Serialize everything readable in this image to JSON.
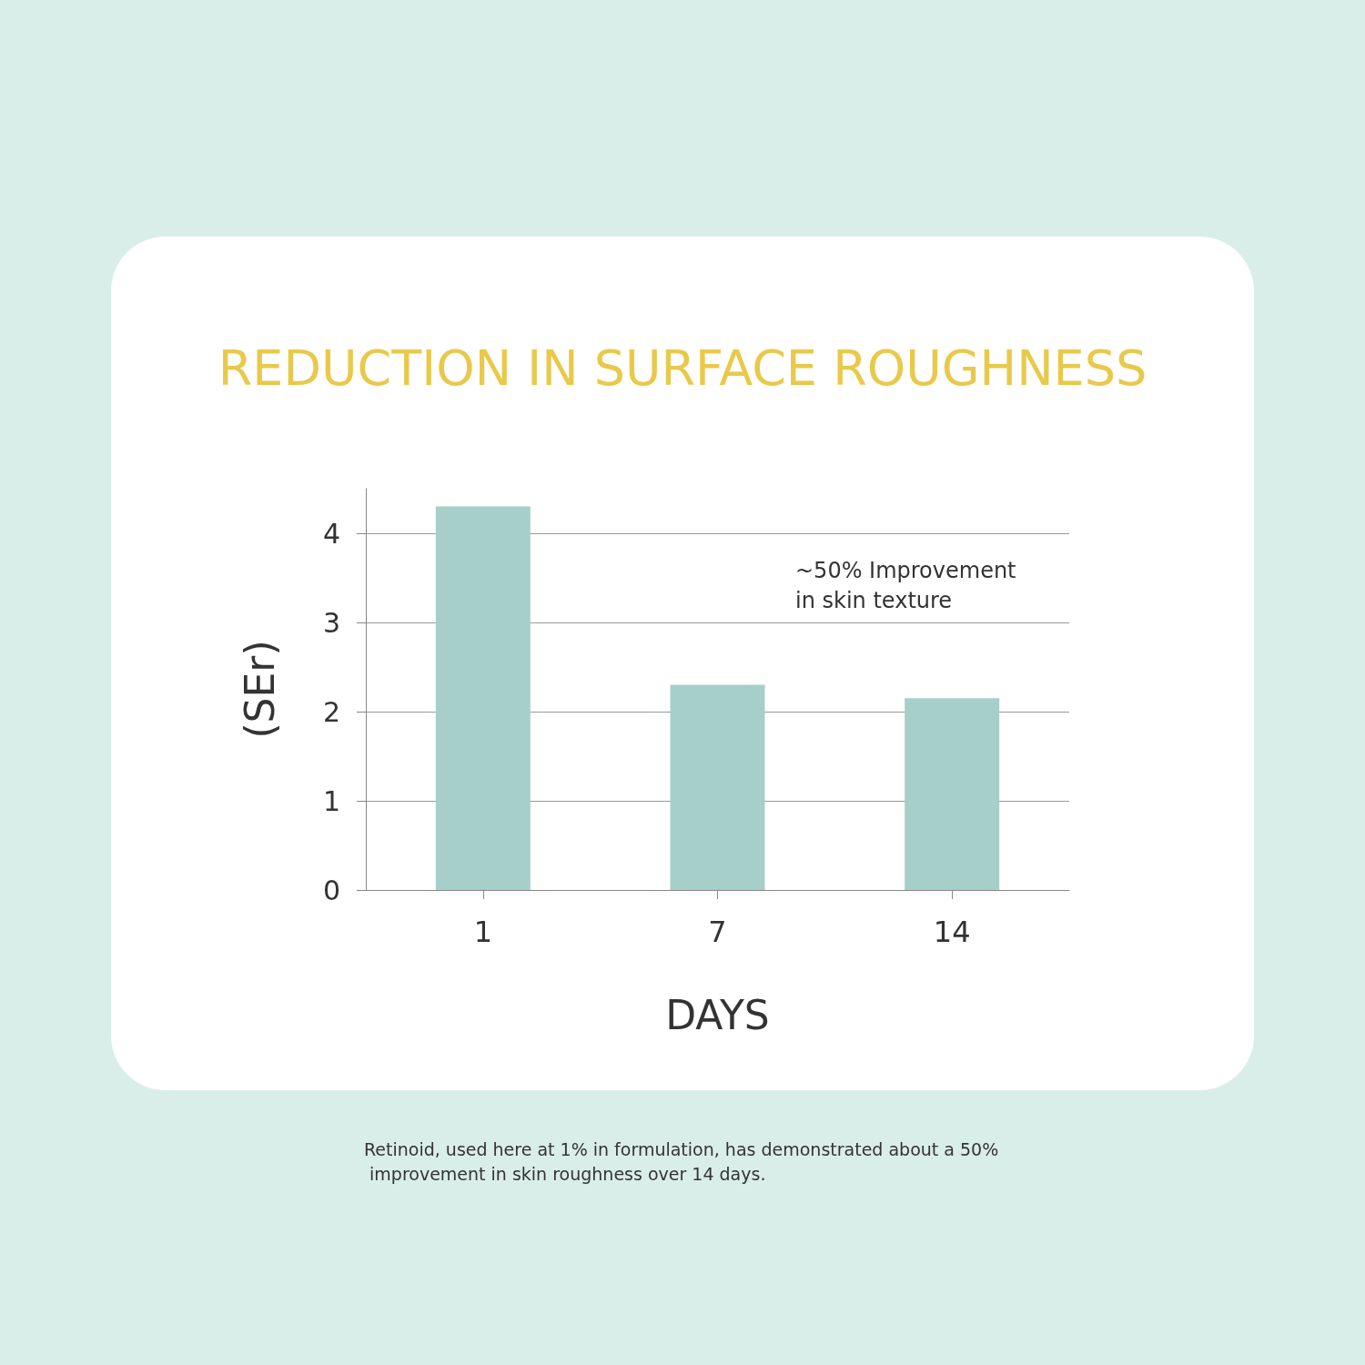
{
  "chart_data": {
    "type": "bar",
    "title": "REDUCTION IN SURFACE ROUGHNESS",
    "xlabel": "DAYS",
    "ylabel": "(SEr)",
    "categories": [
      "1",
      "7",
      "14"
    ],
    "values": [
      4.3,
      2.3,
      2.15
    ],
    "color": "#a6cfca",
    "ylim": [
      0,
      4.5
    ],
    "yticks": [
      0,
      1,
      2,
      3,
      4
    ],
    "grid": "y",
    "annotations": [
      "~50% Improvement in skin texture",
      "Retinoid, used here at 1% in formulation, has demonstrated about a 50% improvement in skin roughness over 14 days."
    ]
  }
}
